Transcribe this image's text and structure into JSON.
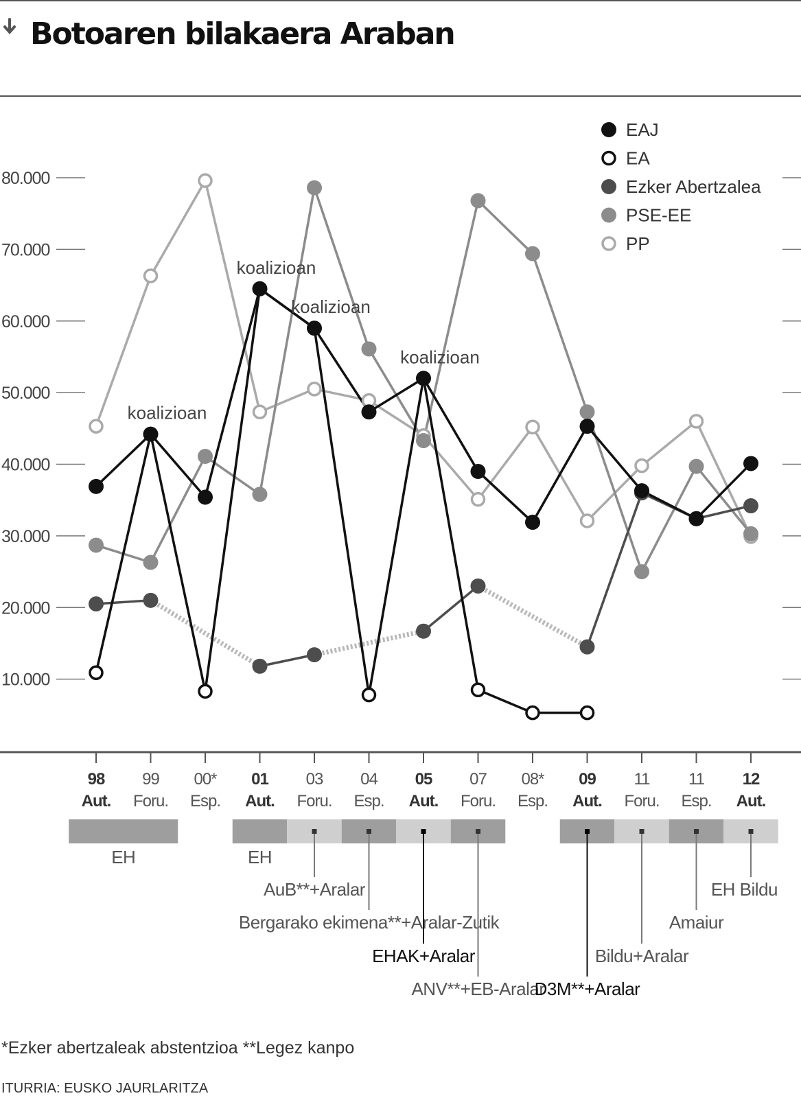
{
  "header": {
    "title": "Botoaren bilakaera Araban"
  },
  "colors": {
    "EAJ": "#111111",
    "EA": "#111111",
    "Ezker Abertzalea": "#4d4d4d",
    "PSE-EE": "#8c8c8c",
    "PP": "#aaaaaa",
    "coalition_dark": "#9e9e9e",
    "coalition_light": "#cfcfcf"
  },
  "chart_data": {
    "type": "line",
    "title": "Botoaren bilakaera Araban",
    "xlabel": "",
    "ylabel": "",
    "ylim": [
      0,
      90000
    ],
    "grid": false,
    "legend": "top-right",
    "yticks": [
      "10.000",
      "20.000",
      "30.000",
      "40.000",
      "50.000",
      "60.000",
      "70.000",
      "80.000"
    ],
    "ytick_values": [
      10000,
      20000,
      30000,
      40000,
      50000,
      60000,
      70000,
      80000
    ],
    "categories": [
      {
        "year": "98",
        "type": "Aut.",
        "bold": true
      },
      {
        "year": "99",
        "type": "Foru.",
        "bold": false
      },
      {
        "year": "00*",
        "type": "Esp.",
        "bold": false
      },
      {
        "year": "01",
        "type": "Aut.",
        "bold": true
      },
      {
        "year": "03",
        "type": "Foru.",
        "bold": false
      },
      {
        "year": "04",
        "type": "Esp.",
        "bold": false
      },
      {
        "year": "05",
        "type": "Aut.",
        "bold": true
      },
      {
        "year": "07",
        "type": "Foru.",
        "bold": false
      },
      {
        "year": "08*",
        "type": "Esp.",
        "bold": false
      },
      {
        "year": "09",
        "type": "Aut.",
        "bold": true
      },
      {
        "year": "11",
        "type": "Foru.",
        "bold": false
      },
      {
        "year": "11",
        "type": "Esp.",
        "bold": false
      },
      {
        "year": "12",
        "type": "Aut.",
        "bold": true
      }
    ],
    "series": [
      {
        "name": "EAJ",
        "marker": "filled",
        "values": [
          36900,
          44200,
          35400,
          64500,
          59000,
          47300,
          52000,
          39000,
          31900,
          45300,
          36300,
          32400,
          40100
        ]
      },
      {
        "name": "EA",
        "marker": "open",
        "values": [
          10900,
          44200,
          8300,
          64500,
          59000,
          7800,
          52000,
          8500,
          5300,
          5300,
          null,
          null,
          null
        ]
      },
      {
        "name": "Ezker Abertzalea",
        "marker": "filled",
        "values": [
          20500,
          21000,
          null,
          11800,
          13400,
          null,
          16700,
          23000,
          null,
          14500,
          36000,
          32400,
          34200
        ],
        "abstention_links": [
          [
            1,
            3
          ],
          [
            4,
            6
          ],
          [
            7,
            9
          ]
        ]
      },
      {
        "name": "PSE-EE",
        "marker": "filled",
        "values": [
          28700,
          26300,
          41100,
          35800,
          78600,
          56100,
          43300,
          76800,
          69400,
          47300,
          25000,
          39700,
          30300
        ]
      },
      {
        "name": "PP",
        "marker": "open",
        "values": [
          45300,
          66300,
          79600,
          47300,
          50500,
          48900,
          44000,
          35100,
          45200,
          32100,
          39800,
          46000,
          29900
        ]
      }
    ],
    "annotations": [
      {
        "label": "koalizioan",
        "index": 1
      },
      {
        "label": "koalizioan",
        "index": 3
      },
      {
        "label": "koalizioan",
        "index": 4
      },
      {
        "label": "koalizioan",
        "index": 6
      }
    ],
    "coalitions": {
      "bars": [
        {
          "from": 0,
          "to": 1,
          "shade": "dark"
        },
        {
          "from": 3,
          "to": 3,
          "shade": "dark"
        },
        {
          "from": 4,
          "to": 4,
          "shade": "light"
        },
        {
          "from": 5,
          "to": 5,
          "shade": "dark"
        },
        {
          "from": 6,
          "to": 6,
          "shade": "light"
        },
        {
          "from": 7,
          "to": 7,
          "shade": "dark"
        },
        {
          "from": 9,
          "to": 9,
          "shade": "dark"
        },
        {
          "from": 10,
          "to": 10,
          "shade": "light"
        },
        {
          "from": 11,
          "to": 11,
          "shade": "dark"
        },
        {
          "from": 12,
          "to": 12,
          "shade": "light"
        }
      ],
      "labels": [
        {
          "text": "EH",
          "index": 0.5,
          "level": 0,
          "leader": false,
          "dark": false
        },
        {
          "text": "EH",
          "index": 3,
          "level": 0,
          "leader": false,
          "dark": false
        },
        {
          "text": "AuB**+Aralar",
          "index": 4,
          "level": 1,
          "leader": true,
          "dark": false
        },
        {
          "text": "Bergarako ekimena**+Aralar-Zutik",
          "index": 5,
          "level": 2,
          "leader": true,
          "dark": false
        },
        {
          "text": "EHAK+Aralar",
          "index": 6,
          "level": 3,
          "leader": true,
          "dark": true
        },
        {
          "text": "ANV**+EB-Aralar",
          "index": 7,
          "level": 4,
          "leader": true,
          "dark": false
        },
        {
          "text": "D3M**+Aralar",
          "index": 9,
          "level": 4,
          "leader": true,
          "dark": true
        },
        {
          "text": "Bildu+Aralar",
          "index": 10,
          "level": 3,
          "leader": true,
          "dark": false
        },
        {
          "text": "Amaiur",
          "index": 11,
          "level": 2,
          "leader": true,
          "dark": false
        },
        {
          "text": "EH Bildu",
          "index": 12,
          "level": 1,
          "leader": true,
          "dark": false
        }
      ]
    }
  },
  "footnote": "*Ezker abertzaleak abstentzioa **Legez kanpo",
  "source": "ITURRIA: EUSKO JAURLARITZA"
}
